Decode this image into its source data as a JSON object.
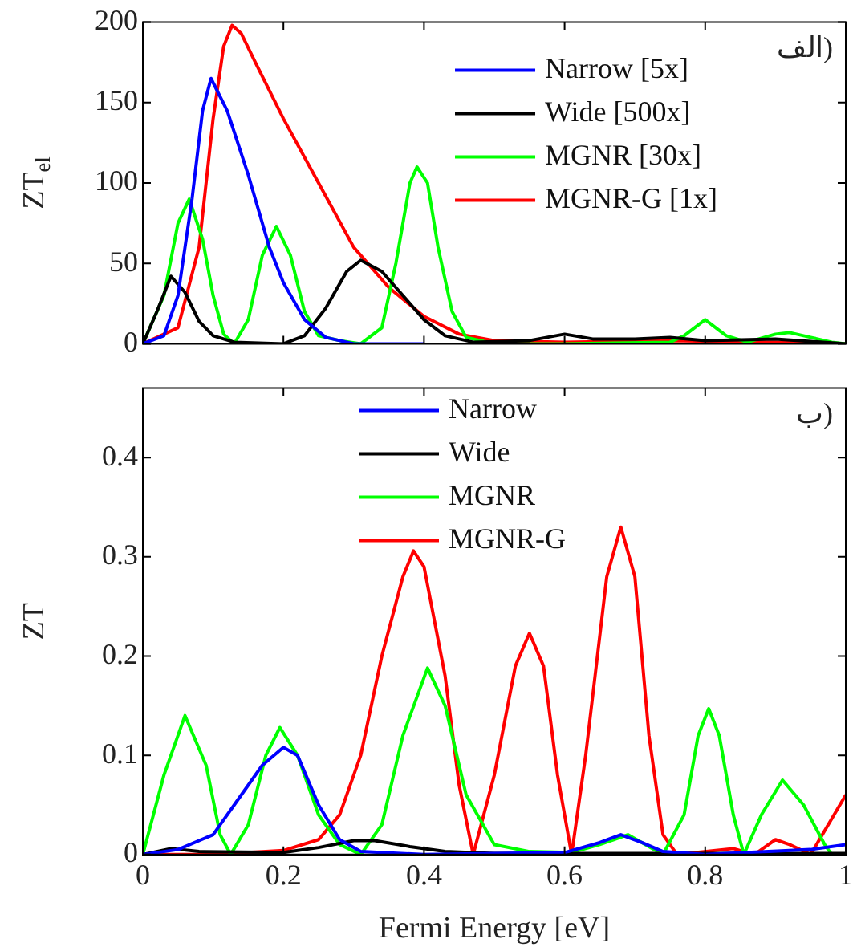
{
  "chart_data": [
    {
      "type": "line",
      "ylabel": "ZT$_{el}$",
      "xlim": [
        0,
        1
      ],
      "xticks": [
        0,
        0.2,
        0.4,
        0.6,
        0.8,
        1
      ],
      "ylim": [
        0,
        200
      ],
      "yticks": [
        0,
        50,
        100,
        150,
        200
      ],
      "tick_labels": "y",
      "grid": false,
      "legend": "top right",
      "marker": "none",
      "line_style": "solid",
      "annotations": [
        "(الف"
      ],
      "series": [
        {
          "name": "Narrow [5x]",
          "color": "#0000ff",
          "x": [
            0,
            0.03,
            0.05,
            0.07,
            0.085,
            0.097,
            0.12,
            0.15,
            0.18,
            0.2,
            0.23,
            0.26,
            0.3,
            0.4
          ],
          "values": [
            0,
            5,
            30,
            90,
            145,
            165,
            145,
            105,
            60,
            38,
            15,
            4,
            0,
            0
          ]
        },
        {
          "name": "Wide [500x]",
          "color": "#000000",
          "x": [
            0,
            0.02,
            0.04,
            0.06,
            0.08,
            0.1,
            0.13,
            0.2,
            0.23,
            0.26,
            0.29,
            0.31,
            0.34,
            0.37,
            0.4,
            0.43,
            0.47,
            0.55,
            0.6,
            0.64,
            0.7,
            0.75,
            0.8,
            0.9,
            1
          ],
          "values": [
            0,
            20,
            42,
            32,
            14,
            5,
            1,
            0,
            5,
            22,
            45,
            52,
            45,
            30,
            15,
            5,
            1,
            2,
            6,
            3,
            3,
            4,
            2,
            3,
            0
          ]
        },
        {
          "name": "MGNR [30x]",
          "color": "#00ff00",
          "x": [
            0,
            0.03,
            0.05,
            0.066,
            0.085,
            0.1,
            0.115,
            0.13,
            0.15,
            0.17,
            0.19,
            0.21,
            0.23,
            0.25,
            0.28,
            0.31,
            0.34,
            0.36,
            0.38,
            0.39,
            0.405,
            0.42,
            0.44,
            0.46,
            0.5,
            0.6,
            0.75,
            0.77,
            0.8,
            0.83,
            0.86,
            0.9,
            0.92,
            0.95,
            0.98,
            1
          ],
          "values": [
            0,
            30,
            75,
            90,
            65,
            30,
            6,
            0,
            15,
            55,
            73,
            55,
            20,
            5,
            2,
            0,
            10,
            50,
            100,
            110,
            100,
            60,
            20,
            4,
            0,
            0,
            1,
            5,
            15,
            5,
            1,
            6,
            7,
            4,
            1,
            0
          ]
        },
        {
          "name": "MGNR-G [1x]",
          "color": "#ff0000",
          "x": [
            0,
            0.05,
            0.08,
            0.1,
            0.115,
            0.127,
            0.14,
            0.16,
            0.2,
            0.25,
            0.3,
            0.35,
            0.4,
            0.45,
            0.5,
            0.6,
            0.75,
            0.9,
            1
          ],
          "values": [
            0,
            10,
            60,
            140,
            185,
            198,
            193,
            175,
            140,
            100,
            60,
            35,
            17,
            6,
            2,
            1,
            2,
            1,
            0
          ]
        }
      ]
    },
    {
      "type": "line",
      "xlabel": "Fermi Energy [eV]",
      "ylabel": "ZT",
      "xlim": [
        0,
        1
      ],
      "xticks": [
        0,
        0.2,
        0.4,
        0.6,
        0.8,
        1
      ],
      "ylim": [
        0,
        0.47
      ],
      "yticks": [
        0,
        0.1,
        0.2,
        0.3,
        0.4
      ],
      "grid": false,
      "legend": "top",
      "marker": "none",
      "line_style": "solid",
      "annotations": [
        "(ب"
      ],
      "series": [
        {
          "name": "Narrow",
          "color": "#0000ff",
          "x": [
            0,
            0.05,
            0.1,
            0.13,
            0.17,
            0.2,
            0.22,
            0.25,
            0.28,
            0.31,
            0.4,
            0.6,
            0.65,
            0.68,
            0.71,
            0.74,
            0.8,
            0.95,
            1
          ],
          "values": [
            0,
            0.005,
            0.02,
            0.05,
            0.09,
            0.108,
            0.1,
            0.05,
            0.015,
            0.003,
            0,
            0.002,
            0.012,
            0.02,
            0.012,
            0.003,
            0,
            0.005,
            0.01
          ]
        },
        {
          "name": "Wide",
          "color": "#000000",
          "x": [
            0,
            0.04,
            0.08,
            0.2,
            0.25,
            0.3,
            0.33,
            0.38,
            0.43,
            0.5,
            1
          ],
          "values": [
            0,
            0.006,
            0.003,
            0.002,
            0.007,
            0.014,
            0.014,
            0.008,
            0.003,
            0.001,
            0.001
          ]
        },
        {
          "name": "MGNR",
          "color": "#00ff00",
          "x": [
            0,
            0.03,
            0.06,
            0.09,
            0.11,
            0.125,
            0.15,
            0.175,
            0.195,
            0.22,
            0.25,
            0.28,
            0.31,
            0.34,
            0.37,
            0.405,
            0.43,
            0.46,
            0.5,
            0.55,
            0.61,
            0.65,
            0.69,
            0.72,
            0.74,
            0.77,
            0.79,
            0.805,
            0.82,
            0.84,
            0.855,
            0.88,
            0.91,
            0.94,
            0.97,
            0.98,
            1
          ],
          "values": [
            0,
            0.08,
            0.14,
            0.09,
            0.02,
            0,
            0.03,
            0.1,
            0.128,
            0.1,
            0.04,
            0.01,
            0,
            0.03,
            0.12,
            0.188,
            0.15,
            0.06,
            0.01,
            0.003,
            0.002,
            0.01,
            0.02,
            0.008,
            0,
            0.04,
            0.12,
            0.147,
            0.12,
            0.04,
            0,
            0.04,
            0.075,
            0.05,
            0.01,
            0,
            0
          ]
        },
        {
          "name": "MGNR-G",
          "color": "#ff0000",
          "x": [
            0,
            0.1,
            0.2,
            0.25,
            0.28,
            0.31,
            0.34,
            0.37,
            0.385,
            0.4,
            0.43,
            0.45,
            0.47,
            0.5,
            0.53,
            0.55,
            0.57,
            0.59,
            0.61,
            0.63,
            0.66,
            0.68,
            0.7,
            0.72,
            0.74,
            0.76,
            0.84,
            0.87,
            0.9,
            0.92,
            0.95,
            1
          ],
          "values": [
            0,
            0,
            0.004,
            0.015,
            0.04,
            0.1,
            0.2,
            0.28,
            0.306,
            0.29,
            0.18,
            0.07,
            0,
            0.08,
            0.19,
            0.223,
            0.19,
            0.08,
            0,
            0.1,
            0.28,
            0.33,
            0.28,
            0.12,
            0.02,
            0,
            0.006,
            0,
            0.015,
            0.01,
            0,
            0.06
          ]
        }
      ]
    }
  ]
}
